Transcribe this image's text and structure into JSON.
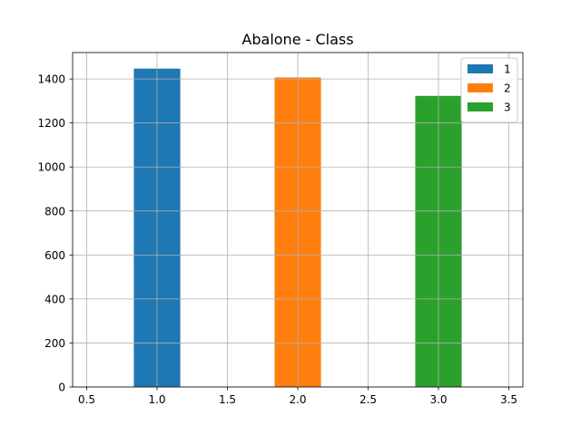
{
  "chart_data": {
    "type": "bar",
    "title": "Abalone - Class",
    "xlabel": "",
    "ylabel": "",
    "grid": true,
    "legend_position": "top-right",
    "xlim": [
      0.4,
      3.6
    ],
    "ylim": [
      0,
      1520
    ],
    "x_ticks": [
      0.5,
      1.0,
      1.5,
      2.0,
      2.5,
      3.0,
      3.5
    ],
    "x_tick_labels": [
      "0.5",
      "1.0",
      "1.5",
      "2.0",
      "2.5",
      "3.0",
      "3.5"
    ],
    "y_ticks": [
      0,
      200,
      400,
      600,
      800,
      1000,
      1200,
      1400
    ],
    "y_tick_labels": [
      "0",
      "200",
      "400",
      "600",
      "800",
      "1000",
      "1200",
      "1400"
    ],
    "bar_width": 0.33,
    "series": [
      {
        "name": "1",
        "x": 1.0,
        "value": 1447,
        "color": "#1f77b4"
      },
      {
        "name": "2",
        "x": 2.0,
        "value": 1407,
        "color": "#ff7f0e"
      },
      {
        "name": "3",
        "x": 3.0,
        "value": 1323,
        "color": "#2ca02c"
      }
    ]
  }
}
